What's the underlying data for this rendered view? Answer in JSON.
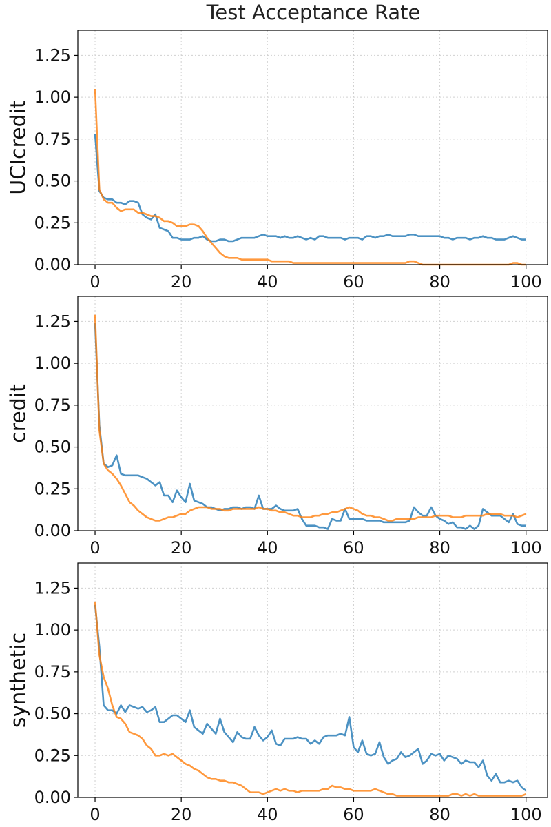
{
  "chart_data": {
    "type": "line",
    "title": "Test Acceptance Rate",
    "xlim": [
      -4,
      105
    ],
    "ylim": [
      0,
      1.4
    ],
    "x_ticks": [
      0,
      20,
      40,
      60,
      80,
      100
    ],
    "y_ticks": [
      0.0,
      0.25,
      0.5,
      0.75,
      1.0,
      1.25
    ],
    "y_tick_labels": [
      "0.00",
      "0.25",
      "0.50",
      "0.75",
      "1.00",
      "1.25"
    ],
    "grid": true,
    "series_colors": [
      "#1f77b4",
      "#ff7f0e"
    ],
    "panels": [
      {
        "ylabel": "UCIcredit",
        "series": [
          {
            "color": "#1f77b4",
            "values": [
              0.78,
              0.44,
              0.4,
              0.39,
              0.39,
              0.37,
              0.37,
              0.36,
              0.38,
              0.38,
              0.37,
              0.3,
              0.28,
              0.27,
              0.3,
              0.22,
              0.21,
              0.2,
              0.16,
              0.16,
              0.15,
              0.15,
              0.15,
              0.16,
              0.16,
              0.17,
              0.15,
              0.14,
              0.14,
              0.15,
              0.15,
              0.14,
              0.14,
              0.15,
              0.16,
              0.16,
              0.16,
              0.16,
              0.17,
              0.18,
              0.17,
              0.17,
              0.17,
              0.16,
              0.17,
              0.16,
              0.16,
              0.17,
              0.16,
              0.15,
              0.16,
              0.15,
              0.17,
              0.17,
              0.16,
              0.16,
              0.16,
              0.16,
              0.15,
              0.16,
              0.16,
              0.16,
              0.15,
              0.17,
              0.17,
              0.16,
              0.17,
              0.17,
              0.18,
              0.17,
              0.17,
              0.17,
              0.17,
              0.18,
              0.18,
              0.17,
              0.17,
              0.17,
              0.17,
              0.17,
              0.17,
              0.16,
              0.16,
              0.15,
              0.16,
              0.16,
              0.16,
              0.15,
              0.16,
              0.16,
              0.17,
              0.16,
              0.16,
              0.15,
              0.15,
              0.15,
              0.16,
              0.17,
              0.16,
              0.15,
              0.15
            ]
          },
          {
            "color": "#ff7f0e",
            "values": [
              1.05,
              0.45,
              0.39,
              0.37,
              0.37,
              0.34,
              0.32,
              0.33,
              0.33,
              0.33,
              0.31,
              0.31,
              0.3,
              0.29,
              0.29,
              0.28,
              0.26,
              0.26,
              0.25,
              0.23,
              0.23,
              0.23,
              0.24,
              0.24,
              0.23,
              0.2,
              0.16,
              0.13,
              0.1,
              0.07,
              0.05,
              0.04,
              0.04,
              0.04,
              0.03,
              0.03,
              0.03,
              0.03,
              0.03,
              0.03,
              0.03,
              0.02,
              0.02,
              0.02,
              0.02,
              0.02,
              0.01,
              0.01,
              0.01,
              0.01,
              0.01,
              0.01,
              0.01,
              0.01,
              0.01,
              0.01,
              0.01,
              0.01,
              0.01,
              0.01,
              0.01,
              0.01,
              0.01,
              0.01,
              0.01,
              0.01,
              0.01,
              0.01,
              0.01,
              0.01,
              0.01,
              0.01,
              0.01,
              0.02,
              0.02,
              0.01,
              0.0,
              0.0,
              0.0,
              0.0,
              0.0,
              0.0,
              0.0,
              0.0,
              0.0,
              0.0,
              0.0,
              0.0,
              0.0,
              0.0,
              0.0,
              0.0,
              0.0,
              0.0,
              0.0,
              0.0,
              0.0,
              0.01,
              0.01,
              0.0,
              0.0
            ]
          }
        ]
      },
      {
        "ylabel": "credit",
        "series": [
          {
            "color": "#1f77b4",
            "values": [
              1.24,
              0.63,
              0.4,
              0.38,
              0.39,
              0.45,
              0.34,
              0.33,
              0.33,
              0.33,
              0.33,
              0.32,
              0.31,
              0.29,
              0.27,
              0.29,
              0.21,
              0.21,
              0.17,
              0.24,
              0.2,
              0.17,
              0.28,
              0.18,
              0.17,
              0.16,
              0.14,
              0.14,
              0.13,
              0.12,
              0.13,
              0.13,
              0.14,
              0.14,
              0.13,
              0.14,
              0.14,
              0.13,
              0.21,
              0.13,
              0.13,
              0.13,
              0.15,
              0.13,
              0.12,
              0.12,
              0.12,
              0.13,
              0.07,
              0.03,
              0.03,
              0.03,
              0.02,
              0.02,
              0.01,
              0.07,
              0.06,
              0.06,
              0.13,
              0.07,
              0.07,
              0.07,
              0.07,
              0.06,
              0.06,
              0.06,
              0.06,
              0.05,
              0.05,
              0.05,
              0.05,
              0.05,
              0.05,
              0.06,
              0.14,
              0.11,
              0.09,
              0.09,
              0.14,
              0.09,
              0.07,
              0.06,
              0.04,
              0.05,
              0.02,
              0.02,
              0.01,
              0.03,
              0.01,
              0.03,
              0.13,
              0.11,
              0.09,
              0.09,
              0.09,
              0.07,
              0.05,
              0.1,
              0.04,
              0.03,
              0.03
            ]
          },
          {
            "color": "#ff7f0e",
            "values": [
              1.29,
              0.6,
              0.4,
              0.36,
              0.34,
              0.31,
              0.27,
              0.22,
              0.17,
              0.15,
              0.12,
              0.1,
              0.08,
              0.07,
              0.06,
              0.06,
              0.07,
              0.08,
              0.08,
              0.09,
              0.1,
              0.1,
              0.12,
              0.13,
              0.14,
              0.14,
              0.14,
              0.13,
              0.13,
              0.13,
              0.12,
              0.12,
              0.13,
              0.13,
              0.13,
              0.13,
              0.13,
              0.13,
              0.14,
              0.13,
              0.13,
              0.12,
              0.12,
              0.11,
              0.11,
              0.1,
              0.09,
              0.09,
              0.08,
              0.08,
              0.08,
              0.09,
              0.09,
              0.1,
              0.1,
              0.11,
              0.11,
              0.12,
              0.13,
              0.14,
              0.13,
              0.12,
              0.1,
              0.09,
              0.09,
              0.08,
              0.08,
              0.07,
              0.06,
              0.06,
              0.07,
              0.07,
              0.07,
              0.07,
              0.07,
              0.08,
              0.08,
              0.08,
              0.08,
              0.09,
              0.09,
              0.09,
              0.09,
              0.08,
              0.08,
              0.08,
              0.09,
              0.09,
              0.09,
              0.09,
              0.09,
              0.1,
              0.1,
              0.1,
              0.1,
              0.09,
              0.09,
              0.09,
              0.08,
              0.09,
              0.1
            ]
          }
        ]
      },
      {
        "ylabel": "synthetic",
        "series": [
          {
            "color": "#1f77b4",
            "values": [
              1.15,
              0.9,
              0.55,
              0.52,
              0.52,
              0.5,
              0.55,
              0.51,
              0.55,
              0.54,
              0.53,
              0.54,
              0.51,
              0.52,
              0.54,
              0.45,
              0.45,
              0.47,
              0.49,
              0.49,
              0.47,
              0.45,
              0.52,
              0.42,
              0.4,
              0.38,
              0.44,
              0.41,
              0.38,
              0.47,
              0.39,
              0.36,
              0.33,
              0.39,
              0.36,
              0.35,
              0.35,
              0.42,
              0.37,
              0.34,
              0.36,
              0.4,
              0.32,
              0.31,
              0.35,
              0.35,
              0.35,
              0.36,
              0.35,
              0.35,
              0.32,
              0.34,
              0.32,
              0.36,
              0.37,
              0.37,
              0.37,
              0.38,
              0.37,
              0.48,
              0.3,
              0.27,
              0.34,
              0.26,
              0.25,
              0.26,
              0.33,
              0.24,
              0.2,
              0.22,
              0.23,
              0.27,
              0.24,
              0.25,
              0.27,
              0.29,
              0.2,
              0.22,
              0.26,
              0.25,
              0.26,
              0.22,
              0.25,
              0.24,
              0.23,
              0.2,
              0.22,
              0.21,
              0.21,
              0.18,
              0.22,
              0.13,
              0.1,
              0.14,
              0.09,
              0.09,
              0.1,
              0.09,
              0.1,
              0.06,
              0.04
            ]
          },
          {
            "color": "#ff7f0e",
            "values": [
              1.17,
              0.85,
              0.72,
              0.65,
              0.55,
              0.48,
              0.47,
              0.44,
              0.39,
              0.38,
              0.37,
              0.35,
              0.31,
              0.29,
              0.25,
              0.25,
              0.26,
              0.25,
              0.26,
              0.24,
              0.22,
              0.2,
              0.19,
              0.17,
              0.16,
              0.14,
              0.12,
              0.11,
              0.11,
              0.1,
              0.1,
              0.09,
              0.09,
              0.08,
              0.07,
              0.05,
              0.03,
              0.03,
              0.03,
              0.02,
              0.03,
              0.04,
              0.05,
              0.04,
              0.05,
              0.04,
              0.04,
              0.03,
              0.04,
              0.04,
              0.04,
              0.04,
              0.04,
              0.05,
              0.05,
              0.07,
              0.06,
              0.06,
              0.05,
              0.05,
              0.04,
              0.04,
              0.04,
              0.04,
              0.04,
              0.05,
              0.04,
              0.03,
              0.02,
              0.02,
              0.01,
              0.01,
              0.01,
              0.01,
              0.01,
              0.01,
              0.01,
              0.01,
              0.01,
              0.01,
              0.01,
              0.01,
              0.01,
              0.02,
              0.02,
              0.01,
              0.02,
              0.01,
              0.02,
              0.01,
              0.01,
              0.01,
              0.01,
              0.01,
              0.01,
              0.01,
              0.01,
              0.01,
              0.01,
              0.01,
              0.02
            ]
          }
        ]
      }
    ]
  }
}
